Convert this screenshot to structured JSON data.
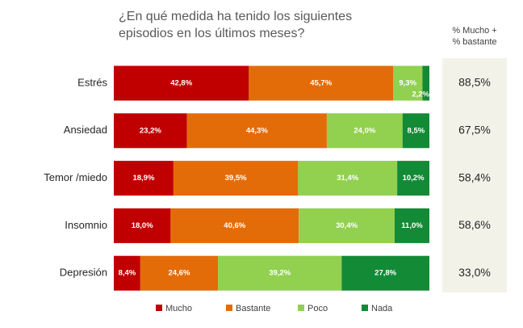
{
  "chart_data": {
    "type": "stacked-bar-horizontal",
    "title": "¿En qué medida ha tenido los siguientes episodios en los últimos meses?",
    "categories": [
      "Estrés",
      "Ansiedad",
      "Temor /miedo",
      "Insomnio",
      "Depresión"
    ],
    "xlim": [
      0,
      100
    ],
    "series": [
      {
        "name": "Mucho",
        "color": "#c00000",
        "values": [
          42.8,
          23.2,
          18.9,
          18.0,
          8.4
        ],
        "value_labels": [
          "42,8%",
          "23,2%",
          "18,9%",
          "18,0%",
          "8,4%"
        ]
      },
      {
        "name": "Bastante",
        "color": "#e36c09",
        "values": [
          45.7,
          44.3,
          39.5,
          40.6,
          24.6
        ],
        "value_labels": [
          "45,7%",
          "44,3%",
          "39,5%",
          "40,6%",
          "24,6%"
        ]
      },
      {
        "name": "Poco",
        "color": "#92d050",
        "values": [
          9.3,
          24.0,
          31.4,
          30.4,
          39.2
        ],
        "value_labels": [
          "9,3%",
          "24,0%",
          "31,4%",
          "30,4%",
          "39,2%"
        ]
      },
      {
        "name": "Nada",
        "color": "#138a36",
        "values": [
          2.2,
          8.5,
          10.2,
          11.0,
          27.8
        ],
        "value_labels": [
          "2,2%",
          "8,5%",
          "10,2%",
          "11,0%",
          "27,8%"
        ]
      }
    ],
    "side_column": {
      "header": [
        "% Mucho +",
        "% bastante"
      ],
      "values": [
        88.5,
        67.5,
        58.4,
        58.6,
        33.0
      ],
      "value_labels": [
        "88,5%",
        "67,5%",
        "58,4%",
        "58,6%",
        "33,0%"
      ]
    },
    "legend": "bottom"
  }
}
